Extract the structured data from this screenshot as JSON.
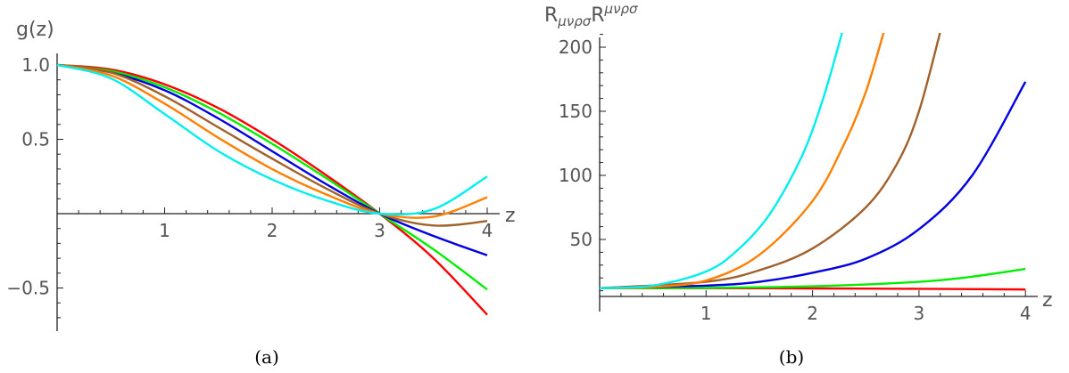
{
  "chart_data": [
    {
      "type": "line",
      "panel_caption": "(a)",
      "xlabel": "z",
      "ylabel": "g(z)",
      "xlim": [
        0,
        4.05
      ],
      "ylim": [
        -0.8,
        1.1
      ],
      "x_ticks": [
        "1",
        "2",
        "3",
        "4"
      ],
      "y_ticks": [
        "−0.5",
        "0.5",
        "1.0"
      ],
      "y_tick_values": [
        -0.5,
        0.5,
        1.0
      ],
      "x_tick_values": [
        1,
        2,
        3,
        4
      ],
      "x": [
        0,
        0.5,
        1,
        1.5,
        2,
        2.5,
        3,
        3.5,
        4
      ],
      "series": [
        {
          "color": "#ff0000",
          "values": [
            1.0,
            0.97,
            0.87,
            0.71,
            0.5,
            0.26,
            0.0,
            -0.3,
            -0.68
          ]
        },
        {
          "color": "#00ee00",
          "values": [
            1.0,
            0.96,
            0.85,
            0.68,
            0.47,
            0.24,
            0.0,
            -0.24,
            -0.51
          ]
        },
        {
          "color": "#0000e0",
          "values": [
            1.0,
            0.95,
            0.83,
            0.64,
            0.42,
            0.2,
            0.0,
            -0.15,
            -0.28
          ]
        },
        {
          "color": "#a0612b",
          "values": [
            1.0,
            0.95,
            0.79,
            0.58,
            0.37,
            0.17,
            0.0,
            -0.08,
            -0.05
          ]
        },
        {
          "color": "#ff8000",
          "values": [
            1.0,
            0.93,
            0.74,
            0.51,
            0.3,
            0.13,
            0.0,
            -0.02,
            0.11
          ]
        },
        {
          "color": "#00eeee",
          "values": [
            1.0,
            0.91,
            0.67,
            0.42,
            0.23,
            0.09,
            0.0,
            0.03,
            0.25
          ]
        }
      ]
    },
    {
      "type": "line",
      "panel_caption": "(b)",
      "xlabel": "z",
      "ylabel": "Rμνρσ Rμνρσ",
      "ylabel_parts": {
        "base1": "R",
        "sub": "μνρσ",
        "base2": "R",
        "sup": "μνρσ"
      },
      "xlim": [
        0,
        4.05
      ],
      "ylim": [
        0,
        212
      ],
      "x_ticks": [
        "1",
        "2",
        "3",
        "4"
      ],
      "y_ticks": [
        "50",
        "100",
        "150",
        "200"
      ],
      "y_tick_values": [
        50,
        100,
        150,
        200
      ],
      "x_tick_values": [
        1,
        2,
        3,
        4
      ],
      "series": [
        {
          "color": "#ff0000",
          "x": [
            0,
            1,
            2,
            3,
            4
          ],
          "values": [
            12,
            12,
            11.8,
            11.5,
            11
          ]
        },
        {
          "color": "#00ee00",
          "x": [
            0,
            1,
            2,
            3,
            3.5,
            4
          ],
          "values": [
            12,
            12.3,
            13.5,
            17,
            21,
            27
          ]
        },
        {
          "color": "#0000e0",
          "x": [
            0,
            1,
            1.5,
            2,
            2.5,
            3,
            3.5,
            4
          ],
          "values": [
            12,
            14,
            17,
            24,
            35,
            58,
            100,
            173
          ]
        },
        {
          "color": "#a0612b",
          "x": [
            0,
            1,
            1.5,
            2,
            2.5,
            2.8,
            3,
            3.2
          ],
          "values": [
            12,
            17,
            26,
            43,
            75,
            110,
            150,
            212
          ]
        },
        {
          "color": "#ff8000",
          "x": [
            0,
            0.5,
            1,
            1.5,
            2,
            2.3,
            2.5,
            2.67
          ],
          "values": [
            12,
            13,
            18,
            38,
            80,
            125,
            165,
            212
          ]
        },
        {
          "color": "#00eeee",
          "x": [
            0,
            0.5,
            1,
            1.3,
            1.6,
            1.9,
            2.1,
            2.28
          ],
          "values": [
            12,
            14,
            25,
            42,
            70,
            115,
            160,
            212
          ]
        }
      ]
    }
  ]
}
